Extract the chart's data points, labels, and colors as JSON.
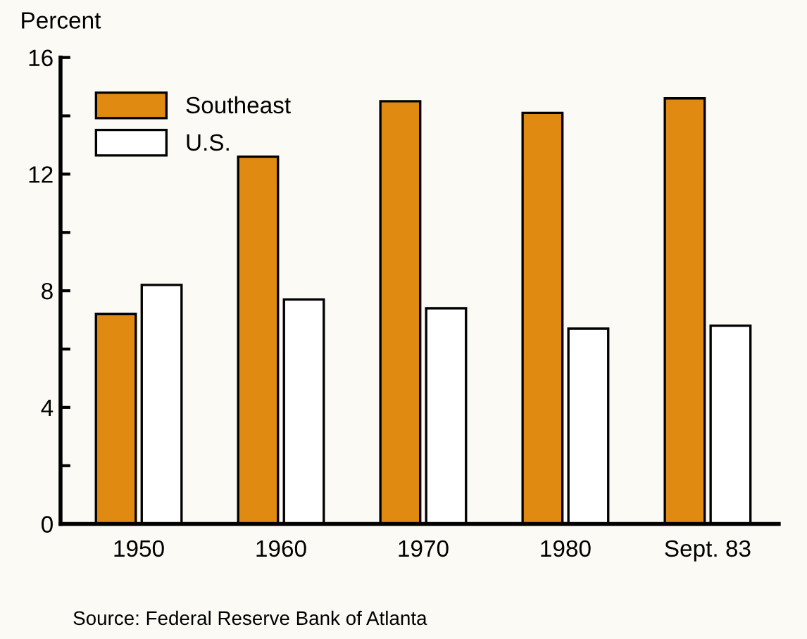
{
  "chart_data": {
    "type": "bar",
    "ylabel": "Percent",
    "categories": [
      "1950",
      "1960",
      "1970",
      "1980",
      "Sept. 83"
    ],
    "series": [
      {
        "name": "Southeast",
        "color": "#e08a12",
        "values": [
          7.2,
          12.6,
          14.5,
          14.1,
          14.6
        ]
      },
      {
        "name": "U.S.",
        "color": "#ffffff",
        "values": [
          8.2,
          7.7,
          7.4,
          6.7,
          6.8
        ]
      }
    ],
    "ylim": [
      0,
      16
    ],
    "yticks": [
      0,
      {
        "value": 2,
        "label": null
      },
      4,
      {
        "value": 6,
        "label": null
      },
      8,
      {
        "value": 10,
        "label": null
      },
      12,
      {
        "value": 14,
        "label": null
      },
      16
    ],
    "grid": false,
    "legend": "top left",
    "annotations": [
      "Source: Federal Reserve Bank of Atlanta"
    ]
  }
}
